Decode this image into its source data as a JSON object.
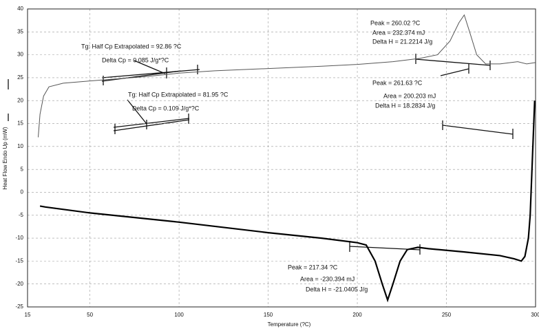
{
  "chart_data": {
    "type": "line",
    "xlabel": "Temperature (?C)",
    "ylabel": "Heat Flow Endo Up (mW)",
    "xlim": [
      15,
      300
    ],
    "xticks": [
      15,
      50,
      100,
      150,
      200,
      250,
      300
    ],
    "ylim": [
      -25,
      40
    ],
    "yticks": [
      -25,
      -20,
      -15,
      -10,
      -5,
      0,
      5,
      10,
      15,
      20,
      25,
      30,
      35,
      40
    ],
    "grid": true,
    "series": [
      {
        "color": "#555555",
        "x": [
          21,
          22,
          24,
          27,
          35,
          50,
          80,
          100,
          120,
          150,
          180,
          200,
          220,
          235,
          245,
          252,
          257,
          260,
          263,
          267,
          272,
          280,
          290,
          295,
          300
        ],
        "values": [
          12,
          17,
          21,
          23,
          23.8,
          24.3,
          25.2,
          26,
          26.5,
          27,
          27.5,
          27.9,
          28.5,
          29.2,
          30,
          33,
          37,
          38.7,
          35,
          30,
          28,
          28,
          28.5,
          28,
          28.3
        ]
      },
      {
        "color": "#000000",
        "x": [
          299.5,
          298,
          297,
          296,
          294,
          292,
          288,
          280,
          260,
          240,
          234,
          228,
          224,
          220,
          217,
          214,
          210,
          205,
          200,
          180,
          150,
          100,
          50,
          25,
          22
        ],
        "values": [
          20,
          5,
          -5,
          -10,
          -14,
          -15,
          -14.5,
          -13.8,
          -13,
          -12.3,
          -12,
          -12.5,
          -15,
          -20,
          -23.5,
          -20,
          -15,
          -11.5,
          -11,
          -10,
          -8.8,
          -6.5,
          -4.5,
          -3.2,
          -3
        ]
      }
    ],
    "annotations": [
      "Tg: Half Cp Extrapolated = 92.86 ?C",
      "Delta Cp = 0.085 J/g*?C",
      "Tg: Half Cp Extrapolated = 81.95 ?C",
      "Delta Cp = 0.109 J/g*?C",
      "Peak = 260.02 ?C",
      "Area = 232.374 mJ",
      "Delta H = 21.2214 J/g",
      "Peak = 261.63 ?C",
      "Area = 200.203 mJ",
      "Delta H = 18.2834 J/g",
      "Peak = 217.34 ?C",
      "Area = -230.394 mJ",
      "Delta H = -21.0405 J/g"
    ]
  }
}
